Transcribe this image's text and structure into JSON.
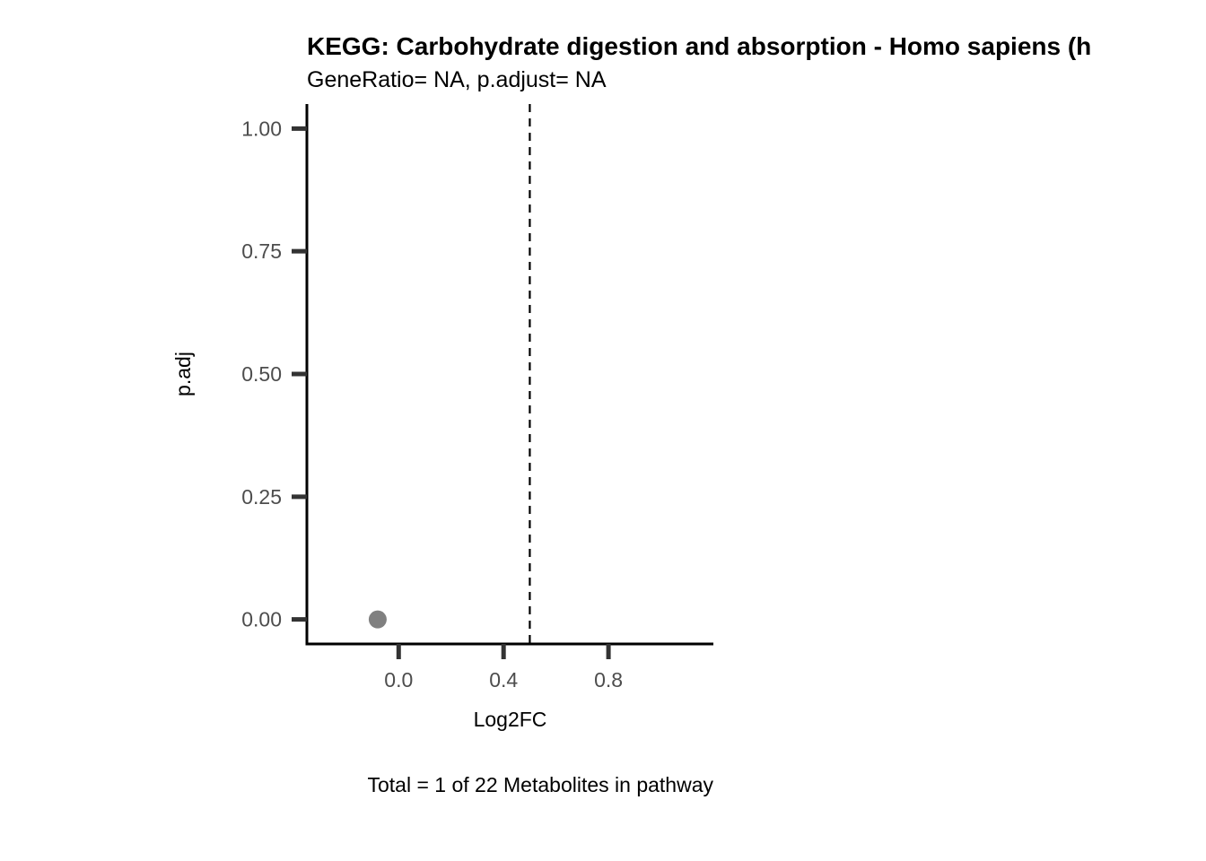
{
  "chart_data": {
    "type": "scatter",
    "title": "KEGG: Carbohydrate digestion and absorption - Homo sapiens (h",
    "subtitle": "GeneRatio= NA, p.adjust= NA",
    "xlabel": "Log2FC",
    "ylabel": "p.adj",
    "caption": "Total = 1 of 22 Metabolites in pathway",
    "xlim": [
      -0.35,
      1.2
    ],
    "ylim": [
      -0.05,
      1.05
    ],
    "x_ticks": [
      0.0,
      0.4,
      0.8
    ],
    "x_tick_labels": [
      "0.0",
      "0.4",
      "0.8"
    ],
    "y_ticks": [
      0.0,
      0.25,
      0.5,
      0.75,
      1.0
    ],
    "y_tick_labels": [
      "0.00",
      "0.25",
      "0.50",
      "0.75",
      "1.00"
    ],
    "vline": {
      "x": 0.5,
      "style": "dashed",
      "color": "#000000"
    },
    "points": [
      {
        "x": -0.08,
        "y": 0.0,
        "color": "#808080"
      }
    ],
    "grid": false,
    "legend": "none"
  }
}
